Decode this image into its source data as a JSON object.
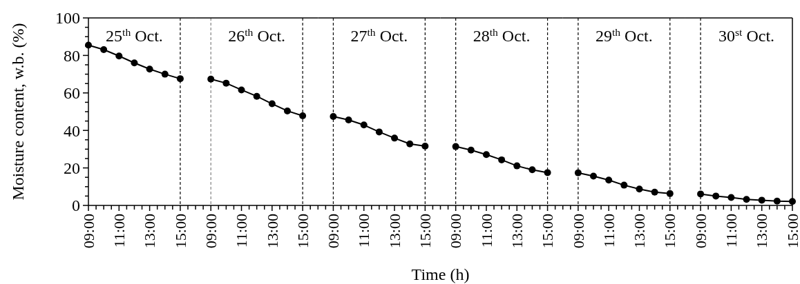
{
  "chart_data": [
    {
      "type": "line",
      "ylabel": "Moisture content, w.b.  (%)",
      "marker": "circle",
      "line_style": "solid",
      "xlim": [
        9,
        16
      ],
      "ylim": [
        0,
        100
      ],
      "yticks": [
        0,
        {
          "value": 5,
          "label": null
        },
        {
          "value": 10,
          "label": null
        },
        {
          "value": 15,
          "label": null
        },
        20,
        {
          "value": 25,
          "label": null
        },
        {
          "value": 30,
          "label": null
        },
        {
          "value": 35,
          "label": null
        },
        40,
        {
          "value": 45,
          "label": null
        },
        {
          "value": 50,
          "label": null
        },
        {
          "value": 55,
          "label": null
        },
        60,
        {
          "value": 65,
          "label": null
        },
        {
          "value": 70,
          "label": null
        },
        {
          "value": 75,
          "label": null
        },
        80,
        {
          "value": 85,
          "label": null
        },
        {
          "value": 90,
          "label": null
        },
        {
          "value": 95,
          "label": null
        },
        100
      ],
      "xticks": [
        {
          "value": 9,
          "label": "09:00"
        },
        {
          "value": 9.5,
          "label": null
        },
        {
          "value": 10,
          "label": null
        },
        {
          "value": 10.5,
          "label": null
        },
        {
          "value": 11,
          "label": "11:00"
        },
        {
          "value": 11.5,
          "label": null
        },
        {
          "value": 12,
          "label": null
        },
        {
          "value": 12.5,
          "label": null
        },
        {
          "value": 13,
          "label": "13:00"
        },
        {
          "value": 13.5,
          "label": null
        },
        {
          "value": 14,
          "label": null
        },
        {
          "value": 14.5,
          "label": null
        },
        {
          "value": 15,
          "label": "15:00"
        },
        {
          "value": 15.5,
          "label": null
        }
      ],
      "series": [
        {
          "color": "#000000",
          "x": [
            9,
            10,
            11,
            12,
            13,
            14,
            15
          ],
          "values": [
            85.5,
            83.1,
            79.7,
            76.0,
            72.7,
            70.0,
            67.6
          ]
        }
      ],
      "ref_lines": [
        {
          "axis": "x",
          "value": 15,
          "color": "#000000",
          "line_style": "dashed"
        }
      ],
      "annotations": [
        "25$^{th}$ Oct."
      ]
    },
    {
      "type": "line",
      "marker": "circle",
      "line_style": "solid",
      "tick_labels": "x",
      "xlim": [
        8,
        16
      ],
      "ylim": [
        0,
        100
      ],
      "yticks": [
        0,
        20,
        40,
        60,
        80,
        100
      ],
      "xticks": [
        {
          "value": 8,
          "label": null
        },
        {
          "value": 8.5,
          "label": null
        },
        {
          "value": 9,
          "label": "09:00"
        },
        {
          "value": 9.5,
          "label": null
        },
        {
          "value": 10,
          "label": null
        },
        {
          "value": 10.5,
          "label": null
        },
        {
          "value": 11,
          "label": "11:00"
        },
        {
          "value": 11.5,
          "label": null
        },
        {
          "value": 12,
          "label": null
        },
        {
          "value": 12.5,
          "label": null
        },
        {
          "value": 13,
          "label": "13:00"
        },
        {
          "value": 13.5,
          "label": null
        },
        {
          "value": 14,
          "label": null
        },
        {
          "value": 14.5,
          "label": null
        },
        {
          "value": 15,
          "label": "15:00"
        },
        {
          "value": 15.5,
          "label": null
        }
      ],
      "series": [
        {
          "color": "#000000",
          "x": [
            9,
            10,
            11,
            12,
            13,
            14,
            15
          ],
          "values": [
            67.4,
            65.2,
            61.6,
            58.2,
            54.2,
            50.4,
            47.8
          ]
        }
      ],
      "ref_lines": [
        {
          "axis": "x",
          "value": 9,
          "color": "#808080",
          "line_style": "dashed"
        },
        {
          "axis": "x",
          "value": 15,
          "color": "#000000",
          "line_style": "dashed"
        }
      ],
      "annotations": [
        "26$^{th}$ Oct."
      ]
    },
    {
      "type": "line",
      "xlabel": "Time (h)",
      "marker": "circle",
      "line_style": "solid",
      "tick_labels": "x",
      "xlim": [
        8,
        16
      ],
      "ylim": [
        0,
        100
      ],
      "yticks": [
        0,
        20,
        40,
        60,
        80,
        100
      ],
      "xticks": [
        {
          "value": 8,
          "label": null
        },
        {
          "value": 8.5,
          "label": null
        },
        {
          "value": 9,
          "label": "09:00"
        },
        {
          "value": 9.5,
          "label": null
        },
        {
          "value": 10,
          "label": null
        },
        {
          "value": 10.5,
          "label": null
        },
        {
          "value": 11,
          "label": "11:00"
        },
        {
          "value": 11.5,
          "label": null
        },
        {
          "value": 12,
          "label": null
        },
        {
          "value": 12.5,
          "label": null
        },
        {
          "value": 13,
          "label": "13:00"
        },
        {
          "value": 13.5,
          "label": null
        },
        {
          "value": 14,
          "label": null
        },
        {
          "value": 14.5,
          "label": null
        },
        {
          "value": 15,
          "label": "15:00"
        },
        {
          "value": 15.5,
          "label": null
        }
      ],
      "series": [
        {
          "color": "#000000",
          "x": [
            9,
            10,
            11,
            12,
            13,
            14,
            15
          ],
          "values": [
            47.4,
            45.6,
            42.9,
            39.2,
            35.9,
            32.8,
            31.6
          ]
        }
      ],
      "ref_lines": [
        {
          "axis": "x",
          "value": 9,
          "color": "#000000",
          "line_style": "dashed"
        },
        {
          "axis": "x",
          "value": 15,
          "color": "#000000",
          "line_style": "dashed"
        }
      ],
      "annotations": [
        "27$^{th}$ Oct."
      ]
    },
    {
      "type": "line",
      "marker": "circle",
      "line_style": "solid",
      "tick_labels": "x",
      "xlim": [
        8,
        16
      ],
      "ylim": [
        0,
        100
      ],
      "yticks": [
        0,
        20,
        40,
        60,
        80,
        100
      ],
      "xticks": [
        {
          "value": 8,
          "label": null
        },
        {
          "value": 8.5,
          "label": null
        },
        {
          "value": 9,
          "label": "09:00"
        },
        {
          "value": 9.5,
          "label": null
        },
        {
          "value": 10,
          "label": null
        },
        {
          "value": 10.5,
          "label": null
        },
        {
          "value": 11,
          "label": "11:00"
        },
        {
          "value": 11.5,
          "label": null
        },
        {
          "value": 12,
          "label": null
        },
        {
          "value": 12.5,
          "label": null
        },
        {
          "value": 13,
          "label": "13:00"
        },
        {
          "value": 13.5,
          "label": null
        },
        {
          "value": 14,
          "label": null
        },
        {
          "value": 14.5,
          "label": null
        },
        {
          "value": 15,
          "label": "15:00"
        },
        {
          "value": 15.5,
          "label": null
        }
      ],
      "series": [
        {
          "color": "#000000",
          "x": [
            9,
            10,
            11,
            12,
            13,
            14,
            15
          ],
          "values": [
            31.4,
            29.5,
            27.1,
            24.3,
            21.1,
            19.0,
            17.5
          ]
        }
      ],
      "ref_lines": [
        {
          "axis": "x",
          "value": 9,
          "color": "#000000",
          "line_style": "dashed"
        },
        {
          "axis": "x",
          "value": 15,
          "color": "#000000",
          "line_style": "dashed"
        }
      ],
      "annotations": [
        "28$^{th}$ Oct."
      ]
    },
    {
      "type": "line",
      "marker": "circle",
      "line_style": "solid",
      "tick_labels": "x",
      "xlim": [
        8,
        16
      ],
      "ylim": [
        0,
        100
      ],
      "yticks": [
        0,
        20,
        40,
        60,
        80,
        100
      ],
      "xticks": [
        {
          "value": 8,
          "label": null
        },
        {
          "value": 8.5,
          "label": null
        },
        {
          "value": 9,
          "label": "09:00"
        },
        {
          "value": 9.5,
          "label": null
        },
        {
          "value": 10,
          "label": null
        },
        {
          "value": 10.5,
          "label": null
        },
        {
          "value": 11,
          "label": "11:00"
        },
        {
          "value": 11.5,
          "label": null
        },
        {
          "value": 12,
          "label": null
        },
        {
          "value": 12.5,
          "label": null
        },
        {
          "value": 13,
          "label": "13:00"
        },
        {
          "value": 13.5,
          "label": null
        },
        {
          "value": 14,
          "label": null
        },
        {
          "value": 14.5,
          "label": null
        },
        {
          "value": 15,
          "label": "15:00"
        },
        {
          "value": 15.5,
          "label": null
        }
      ],
      "series": [
        {
          "color": "#000000",
          "x": [
            9,
            10,
            11,
            12,
            13,
            14,
            15
          ],
          "values": [
            17.4,
            15.6,
            13.5,
            10.8,
            8.7,
            7.1,
            6.3
          ]
        }
      ],
      "ref_lines": [
        {
          "axis": "x",
          "value": 9,
          "color": "#000000",
          "line_style": "dashed"
        },
        {
          "axis": "x",
          "value": 15,
          "color": "#000000",
          "line_style": "dashed"
        }
      ],
      "annotations": [
        "29$^{th}$ Oct."
      ]
    },
    {
      "type": "line",
      "marker": "circle",
      "line_style": "solid",
      "tick_labels": "x",
      "xlim": [
        8,
        15
      ],
      "ylim": [
        0,
        100
      ],
      "yticks": [
        0,
        20,
        40,
        60,
        80,
        100
      ],
      "xticks": [
        {
          "value": 8,
          "label": null
        },
        {
          "value": 8.5,
          "label": null
        },
        {
          "value": 9,
          "label": "09:00"
        },
        {
          "value": 9.5,
          "label": null
        },
        {
          "value": 10,
          "label": null
        },
        {
          "value": 10.5,
          "label": null
        },
        {
          "value": 11,
          "label": "11:00"
        },
        {
          "value": 11.5,
          "label": null
        },
        {
          "value": 12,
          "label": null
        },
        {
          "value": 12.5,
          "label": null
        },
        {
          "value": 13,
          "label": "13:00"
        },
        {
          "value": 13.5,
          "label": null
        },
        {
          "value": 14,
          "label": null
        },
        {
          "value": 14.5,
          "label": null
        },
        {
          "value": 15,
          "label": "15:00"
        }
      ],
      "series": [
        {
          "color": "#000000",
          "x": [
            9,
            10,
            11,
            12,
            13,
            14,
            15
          ],
          "values": [
            6.1,
            5.0,
            4.2,
            3.2,
            2.8,
            2.3,
            2.1
          ]
        }
      ],
      "ref_lines": [
        {
          "axis": "x",
          "value": 9,
          "color": "#000000",
          "line_style": "dashed"
        }
      ],
      "annotations": [
        "30$^{st}$ Oct."
      ]
    }
  ]
}
